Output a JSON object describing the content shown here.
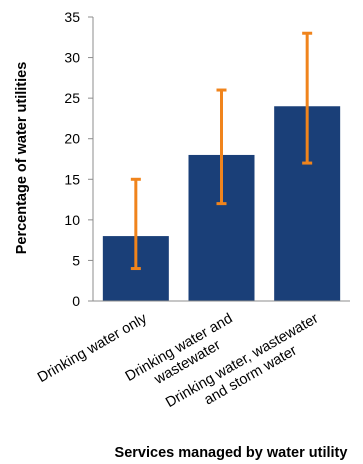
{
  "chart_data": {
    "type": "bar",
    "categories": [
      [
        "Drinking water only"
      ],
      [
        "Drinking water and",
        "wastewater"
      ],
      [
        "Drinking water, wastewater",
        "and storm  water"
      ]
    ],
    "values": [
      8,
      18,
      24
    ],
    "error_low": [
      4,
      12,
      17
    ],
    "error_high": [
      15,
      26,
      33
    ],
    "xlabel": "Services managed by water utility",
    "ylabel": "Percentage of water utilities",
    "ylim": [
      0,
      35
    ],
    "yticks": [
      "0",
      "5",
      "10",
      "15",
      "20",
      "25",
      "30",
      "35"
    ],
    "grid": false,
    "legend": "none",
    "colors": {
      "bar": "#1a3f78",
      "error_bar": "#f0841c",
      "axis": "#8c8c8c"
    }
  }
}
